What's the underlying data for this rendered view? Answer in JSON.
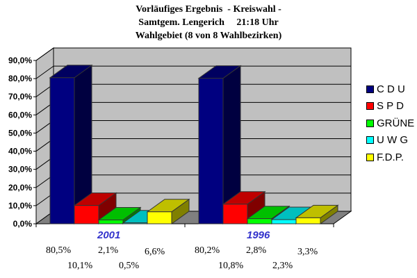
{
  "title": {
    "line1": "Vorläufiges Ergebnis  - Kreiswahl -",
    "line2": "Samtgem. Lengerich     21:18 Uhr",
    "line3": "Wahlgebiet (8 von 8 Wahlbezirken)"
  },
  "y_ticks": [
    "90,0%",
    "80,0%",
    "70,0%",
    "60,0%",
    "50,0%",
    "40,0%",
    "30,0%",
    "20,0%",
    "10,0%",
    "0,0%"
  ],
  "legend": [
    {
      "label": "C D U",
      "color": "#000080"
    },
    {
      "label": "S P D",
      "color": "#ff0000"
    },
    {
      "label": "GRÜNE",
      "color": "#00ff00"
    },
    {
      "label": "U W G",
      "color": "#00ffff"
    },
    {
      "label": "F.D.P.",
      "color": "#ffff00"
    }
  ],
  "groups": [
    {
      "label": "2001",
      "values": [
        "80,5%",
        "10,1%",
        "2,1%",
        "0,5%",
        "6,6%"
      ]
    },
    {
      "label": "1996",
      "values": [
        "80,2%",
        "10,8%",
        "2,8%",
        "2,3%",
        "3,3%"
      ]
    }
  ],
  "chart_data": {
    "type": "bar",
    "title": "Vorläufiges Ergebnis - Kreiswahl - Samtgem. Lengerich 21:18 Uhr Wahlgebiet (8 von 8 Wahlbezirken)",
    "categories": [
      "2001",
      "1996"
    ],
    "series": [
      {
        "name": "C D U",
        "values": [
          80.5,
          80.2
        ]
      },
      {
        "name": "S P D",
        "values": [
          10.1,
          10.8
        ]
      },
      {
        "name": "GRÜNE",
        "values": [
          2.1,
          2.8
        ]
      },
      {
        "name": "U W G",
        "values": [
          0.5,
          2.3
        ]
      },
      {
        "name": "F.D.P.",
        "values": [
          6.6,
          3.3
        ]
      }
    ],
    "xlabel": "",
    "ylabel": "",
    "ylim": [
      0,
      90
    ],
    "y_tick_format": "percent, comma decimal",
    "grid": true,
    "legend_position": "right",
    "style": "3D clustered column"
  }
}
